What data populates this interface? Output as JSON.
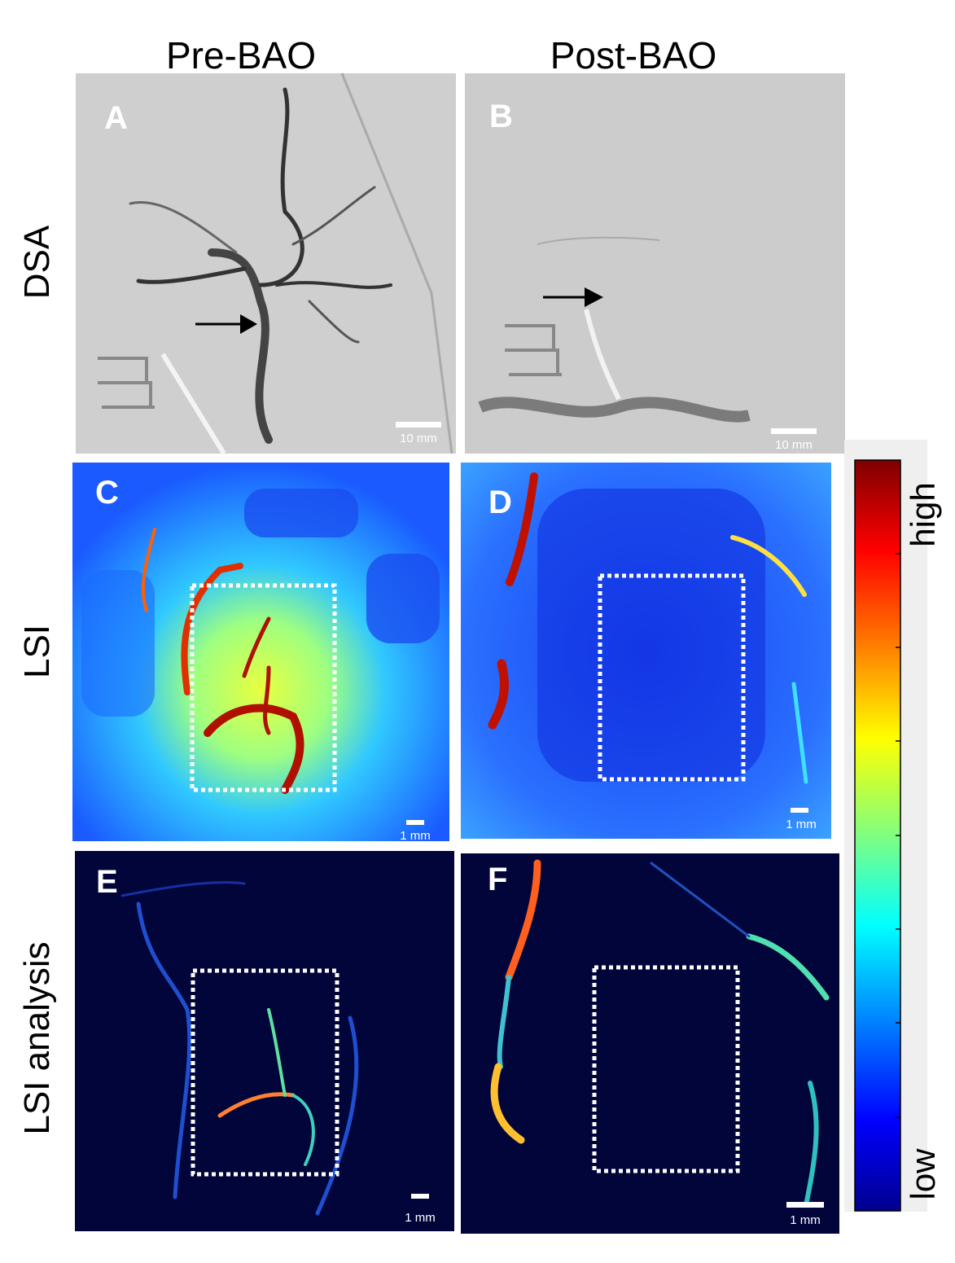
{
  "column_headers": [
    "Pre-BAO",
    "Post-BAO"
  ],
  "row_labels": [
    "DSA",
    "LSI",
    "LSI analysis"
  ],
  "panels": [
    {
      "letter": "A",
      "scale_bar": "10 mm"
    },
    {
      "letter": "B",
      "scale_bar": "10 mm"
    },
    {
      "letter": "C",
      "scale_bar": "1 mm"
    },
    {
      "letter": "D",
      "scale_bar": "1 mm"
    },
    {
      "letter": "E",
      "scale_bar": "1 mm"
    },
    {
      "letter": "F",
      "scale_bar": "1 mm"
    }
  ],
  "colorbar": {
    "high": "high",
    "low": "low"
  }
}
